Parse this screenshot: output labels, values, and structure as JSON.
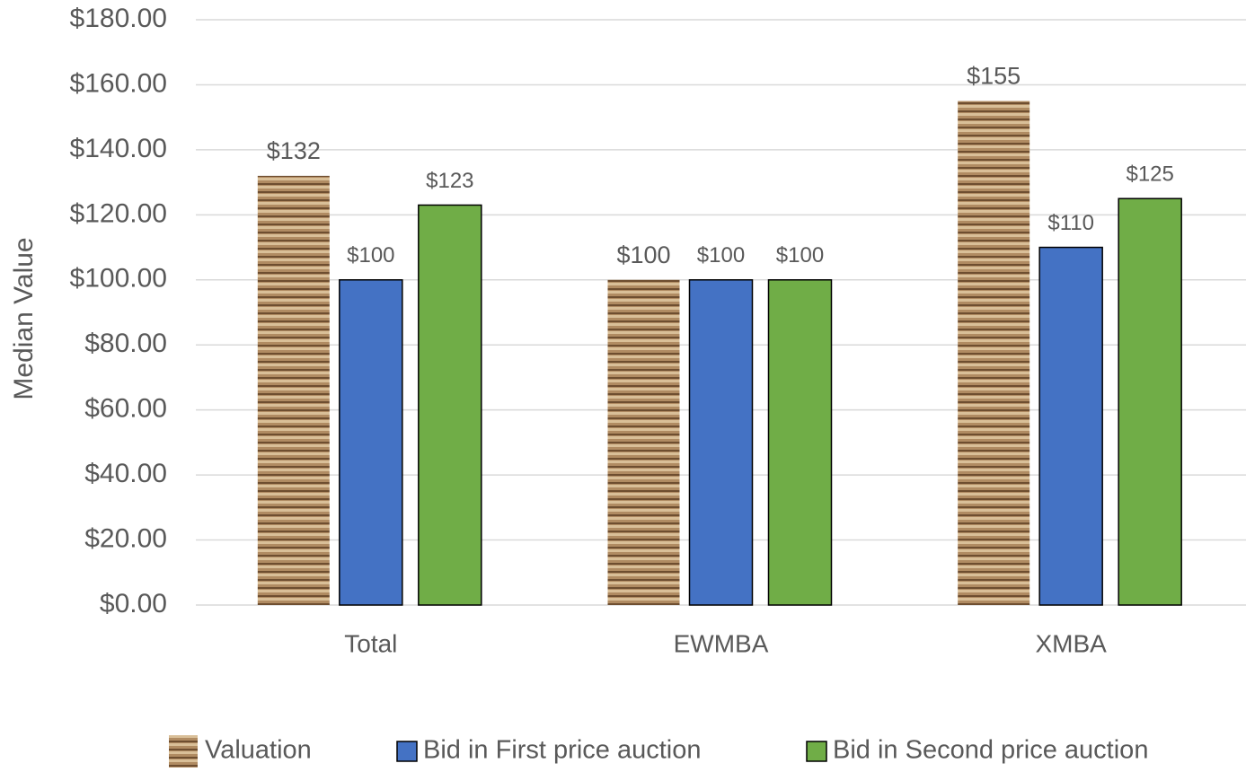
{
  "chart_data": {
    "type": "bar",
    "y_axis_label": "Median Value",
    "categories": [
      "Total",
      "EWMBA",
      "XMBA"
    ],
    "series": [
      {
        "name": "Valuation",
        "color": "#a67c52",
        "values": [
          132,
          100,
          155
        ],
        "value_labels": [
          "$132",
          "$100",
          "$155"
        ]
      },
      {
        "name": "Bid in First price auction",
        "color": "#4472c4",
        "values": [
          100,
          100,
          110
        ],
        "value_labels": [
          "$100",
          "$100",
          "$110"
        ]
      },
      {
        "name": "Bid in Second price auction",
        "color": "#70ad47",
        "values": [
          123,
          100,
          125
        ],
        "value_labels": [
          "$123",
          "$100",
          "$125"
        ]
      }
    ],
    "ylim": [
      0,
      180
    ],
    "yticks": [
      {
        "value": 0,
        "label": "$0.00"
      },
      {
        "value": 20,
        "label": "$20.00"
      },
      {
        "value": 40,
        "label": "$40.00"
      },
      {
        "value": 60,
        "label": "$60.00"
      },
      {
        "value": 80,
        "label": "$80.00"
      },
      {
        "value": 100,
        "label": "$100.00"
      },
      {
        "value": 120,
        "label": "$120.00"
      },
      {
        "value": 140,
        "label": "$140.00"
      },
      {
        "value": 160,
        "label": "$160.00"
      },
      {
        "value": 180,
        "label": "$180.00"
      }
    ],
    "grid": true,
    "legend": "bottom"
  }
}
